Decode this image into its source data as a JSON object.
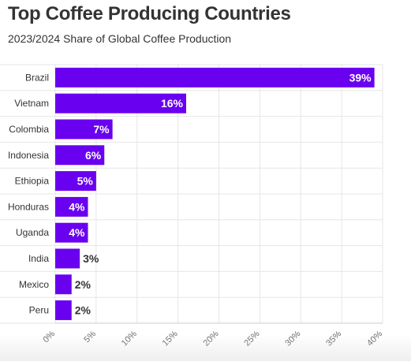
{
  "title": "Top Coffee Producing Countries",
  "subtitle": "2023/2024 Share of Global Coffee Production",
  "colors": {
    "bar": "#6a00f0",
    "grid": "#e6e6e6",
    "label_inside": "#ffffff",
    "label_outside": "#333333"
  },
  "chart_data": {
    "type": "bar",
    "orientation": "horizontal",
    "title": "Top Coffee Producing Countries",
    "subtitle": "2023/2024 Share of Global Coffee Production",
    "categories": [
      "Brazil",
      "Vietnam",
      "Colombia",
      "Indonesia",
      "Ethiopia",
      "Honduras",
      "Uganda",
      "India",
      "Mexico",
      "Peru"
    ],
    "values": [
      39,
      16,
      7,
      6,
      5,
      4,
      4,
      3,
      2,
      2
    ],
    "value_labels": [
      "39%",
      "16%",
      "7%",
      "6%",
      "5%",
      "4%",
      "4%",
      "3%",
      "2%",
      "2%"
    ],
    "xlim": [
      0,
      40
    ],
    "x_ticks": [
      0,
      5,
      10,
      15,
      20,
      25,
      30,
      35,
      40
    ],
    "x_tick_labels": [
      "0%",
      "5%",
      "10%",
      "15%",
      "20%",
      "25%",
      "30%",
      "35%",
      "40%"
    ],
    "grid": true,
    "legend": false
  }
}
